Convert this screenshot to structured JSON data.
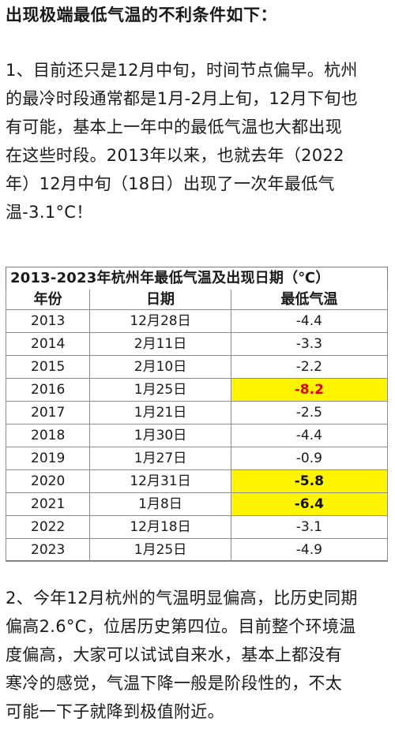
{
  "heading": "出现极端最低气温的不利条件如下：",
  "para1": {
    "lines": [
      "1、目前还只是12月中旬，时间节点偏早。杭州",
      "的最冷时段通常都是1月-2月上旬，12月下旬也",
      "有可能，基本上一年中的最低气温也大都出现",
      "在这些时段。2013年以来，也就去年（2022",
      "年）12月中旬（18日）出现了一次年最低气",
      "温-3.1°C！"
    ]
  },
  "table": {
    "title": "2013-2023年杭州年最低气温及出现日期（℃）",
    "headers": [
      "年份",
      "日期",
      "最低气温"
    ],
    "rows": [
      {
        "year": "2013",
        "date": "12月28日",
        "temp": "-4.4"
      },
      {
        "year": "2014",
        "date": "2月11日",
        "temp": "-3.3"
      },
      {
        "year": "2015",
        "date": "2月10日",
        "temp": "-2.2"
      },
      {
        "year": "2016",
        "date": "1月25日",
        "temp": "-8.2"
      },
      {
        "year": "2017",
        "date": "1月21日",
        "temp": "-2.5"
      },
      {
        "year": "2018",
        "date": "1月30日",
        "temp": "-4.4"
      },
      {
        "year": "2019",
        "date": "1月27日",
        "temp": "-0.9"
      },
      {
        "year": "2020",
        "date": "12月31日",
        "temp": "-5.8"
      },
      {
        "year": "2021",
        "date": "1月8日",
        "temp": "-6.4"
      },
      {
        "year": "2022",
        "date": "12月18日",
        "temp": "-3.1"
      },
      {
        "year": "2023",
        "date": "1月25日",
        "temp": "-4.9"
      }
    ],
    "highlight_color": "#fff500",
    "highlight_text_red": "#e00000"
  },
  "para2": {
    "lines": [
      "2、今年12月杭州的气温明显偏高，比历史同期",
      "偏高2.6°C，位居历史第四位。目前整个环境温",
      "度偏高，大家可以试试自来水，基本上都没有",
      "寒冷的感觉，气温下降一般是阶段性的，不太",
      "可能一下子就降到极值附近。"
    ]
  }
}
